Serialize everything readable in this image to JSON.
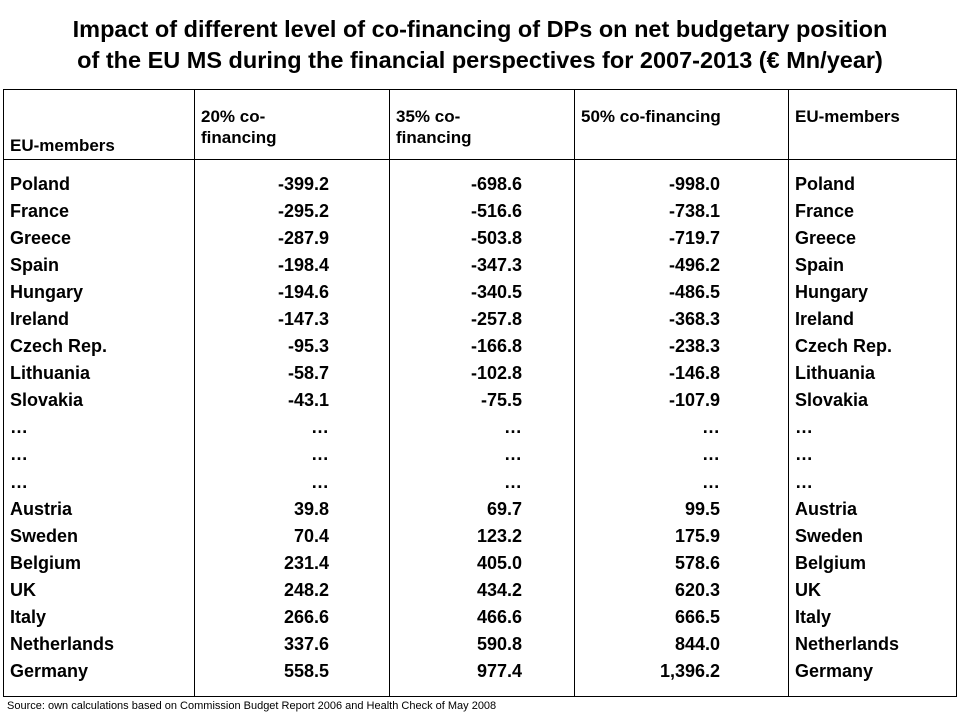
{
  "title": {
    "line1": "Impact of different level of co-financing of DPs on net budgetary position",
    "line2": "of the EU MS during the financial perspectives for 2007-2013 (€ Mn/year)"
  },
  "headers": {
    "members_left": "EU-members",
    "cofin20": "20% co-financing",
    "cofin35": "35% co-financing",
    "cofin50": "50% co-financing",
    "members_right": "EU-members"
  },
  "members": [
    "Poland",
    "France",
    "Greece",
    "Spain",
    "Hungary",
    "Ireland",
    "Czech Rep.",
    "Lithuania",
    "Slovakia",
    "…",
    "…",
    "…",
    "Austria",
    "Sweden",
    "Belgium",
    "UK",
    "Italy",
    "Netherlands",
    "Germany"
  ],
  "cofin20": [
    "-399.2",
    "-295.2",
    "-287.9",
    "-198.4",
    "-194.6",
    "-147.3",
    "-95.3",
    "-58.7",
    "-43.1",
    "…",
    "…",
    "…",
    "39.8",
    "70.4",
    "231.4",
    "248.2",
    "266.6",
    "337.6",
    "558.5"
  ],
  "cofin35": [
    "-698.6",
    "-516.6",
    "-503.8",
    "-347.3",
    "-340.5",
    "-257.8",
    "-166.8",
    "-102.8",
    "-75.5",
    "…",
    "…",
    "…",
    "69.7",
    "123.2",
    "405.0",
    "434.2",
    "466.6",
    "590.8",
    "977.4"
  ],
  "cofin50": [
    "-998.0",
    "-738.1",
    "-719.7",
    "-496.2",
    "-486.5",
    "-368.3",
    "-238.3",
    "-146.8",
    "-107.9",
    "…",
    "…",
    "…",
    "99.5",
    "175.9",
    "578.6",
    "620.3",
    "666.5",
    "844.0",
    "1,396.2"
  ],
  "source": "Source: own calculations based on Commission Budget Report 2006 and Health Check of May 2008"
}
